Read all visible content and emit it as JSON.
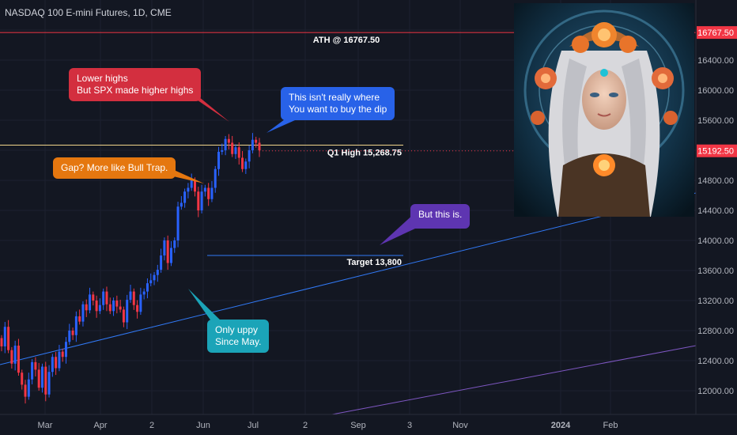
{
  "chart_data": {
    "type": "candlestick",
    "title": "NASDAQ 100 E-mini Futures, 1D, CME",
    "x_tick_labels": [
      "Mar",
      "Apr",
      "2",
      "Jun",
      "Jul",
      "2",
      "Sep",
      "3",
      "Nov",
      "2024",
      "Feb"
    ],
    "y_tick_labels": [
      "12000.00",
      "12400.00",
      "12800.00",
      "13200.00",
      "13600.00",
      "14000.00",
      "14400.00",
      "14800.00",
      "15200.00",
      "15600.00",
      "16000.00",
      "16400.00",
      "16800.00"
    ],
    "ylim": [
      11700,
      17050
    ],
    "price_labels": {
      "ath": "16767.50",
      "last": "15192.50"
    },
    "horizontal_levels": [
      {
        "label": "ATH @ 16767.50",
        "value": 16767.5,
        "color": "#f23645"
      },
      {
        "label": "Q1 High 15,268.75",
        "value": 15268.75,
        "color": "#f0d58a"
      },
      {
        "label": "Target 13,800",
        "value": 13800,
        "color": "#3179f5"
      }
    ],
    "trendlines": [
      {
        "name": "blue",
        "color": "#3179f5"
      },
      {
        "name": "purple",
        "color": "#7e57c2"
      }
    ],
    "annotations": [
      {
        "text": "Lower highs\nBut SPX made higher highs",
        "color": "#d32f3f"
      },
      {
        "text": "This isn't really where\nYou want to buy the dip",
        "color": "#2862e8"
      },
      {
        "text": "Gap? More like Bull Trap.",
        "color": "#e5770f"
      },
      {
        "text": "But this is.",
        "color": "#5e35b1"
      },
      {
        "text": "Only uppy\nSince May.",
        "color": "#1ba4b8"
      }
    ],
    "closes": [
      12590,
      12850,
      12540,
      12360,
      12600,
      12240,
      12080,
      11920,
      12150,
      12380,
      12280,
      12040,
      12320,
      11950,
      12250,
      12450,
      12300,
      12520,
      12450,
      12650,
      12800,
      12740,
      12990,
      12920,
      13150,
      13070,
      13280,
      13200,
      13060,
      13140,
      13320,
      13150,
      13060,
      13200,
      13120,
      13080,
      12910,
      13210,
      13320,
      13140,
      13050,
      13280,
      13320,
      13430,
      13470,
      13540,
      13610,
      13800,
      14000,
      13700,
      13900,
      14000,
      14450,
      14500,
      14650,
      14700,
      14800,
      14650,
      14400,
      14650,
      14700,
      14550,
      14700,
      14950,
      15180,
      15200,
      15350,
      15300,
      15150,
      15240,
      15100,
      14950,
      15050,
      15200,
      15340,
      15300,
      15200
    ]
  }
}
